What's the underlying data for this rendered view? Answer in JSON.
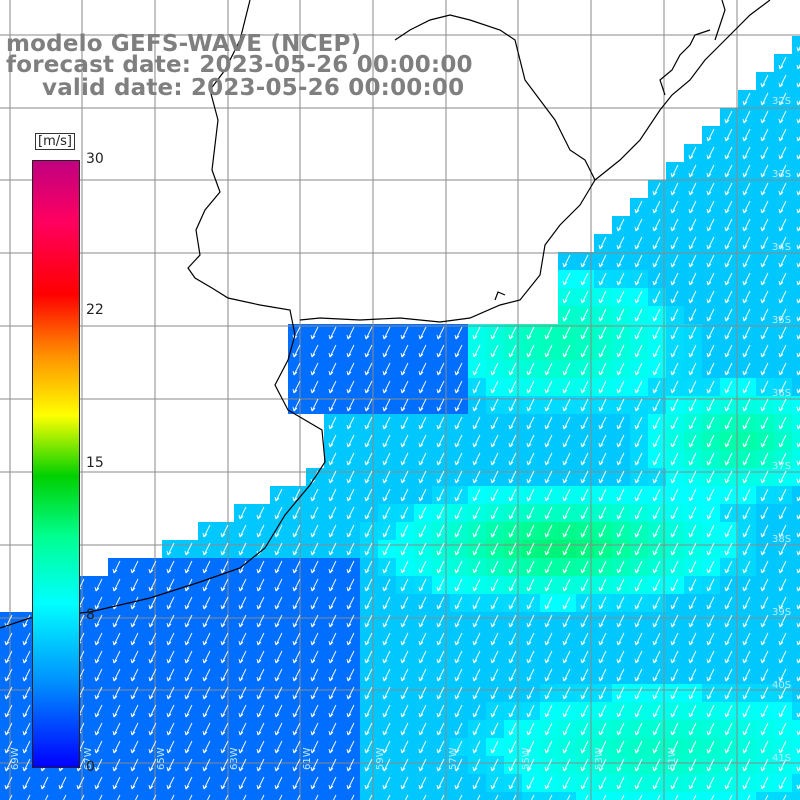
{
  "header": {
    "title": "modelo GEFS-WAVE (NCEP)",
    "forecast": "forecast date: 2023-05-26 00:00:00",
    "valid": "valid date: 2023-05-26 00:00:00"
  },
  "colorbar": {
    "unit": "[m/s]",
    "ticks": [
      "30",
      "22",
      "15",
      "8",
      "0"
    ],
    "tick_values": [
      30,
      22,
      15,
      8,
      0
    ],
    "vmin": 0,
    "vmax": 30,
    "colors": [
      "#0000ff",
      "#00a0ff",
      "#00ffff",
      "#00ff60",
      "#00d000",
      "#ffff00",
      "#ff8000",
      "#ff0000",
      "#ff0060",
      "#c00080"
    ]
  },
  "lat_labels": [
    "32S",
    "33S",
    "34S",
    "35S",
    "36S",
    "37S",
    "38S",
    "39S",
    "40S",
    "41S"
  ],
  "lon_labels": [
    "69W",
    "67W",
    "65W",
    "63W",
    "61W",
    "59W",
    "57W",
    "55W",
    "53W",
    "51W"
  ],
  "map": {
    "variable": "wind speed",
    "land_color": "#ffffff",
    "grid_color": "#8a8a8a",
    "coast_color": "#000000",
    "arrow_color": "#ffffff"
  }
}
